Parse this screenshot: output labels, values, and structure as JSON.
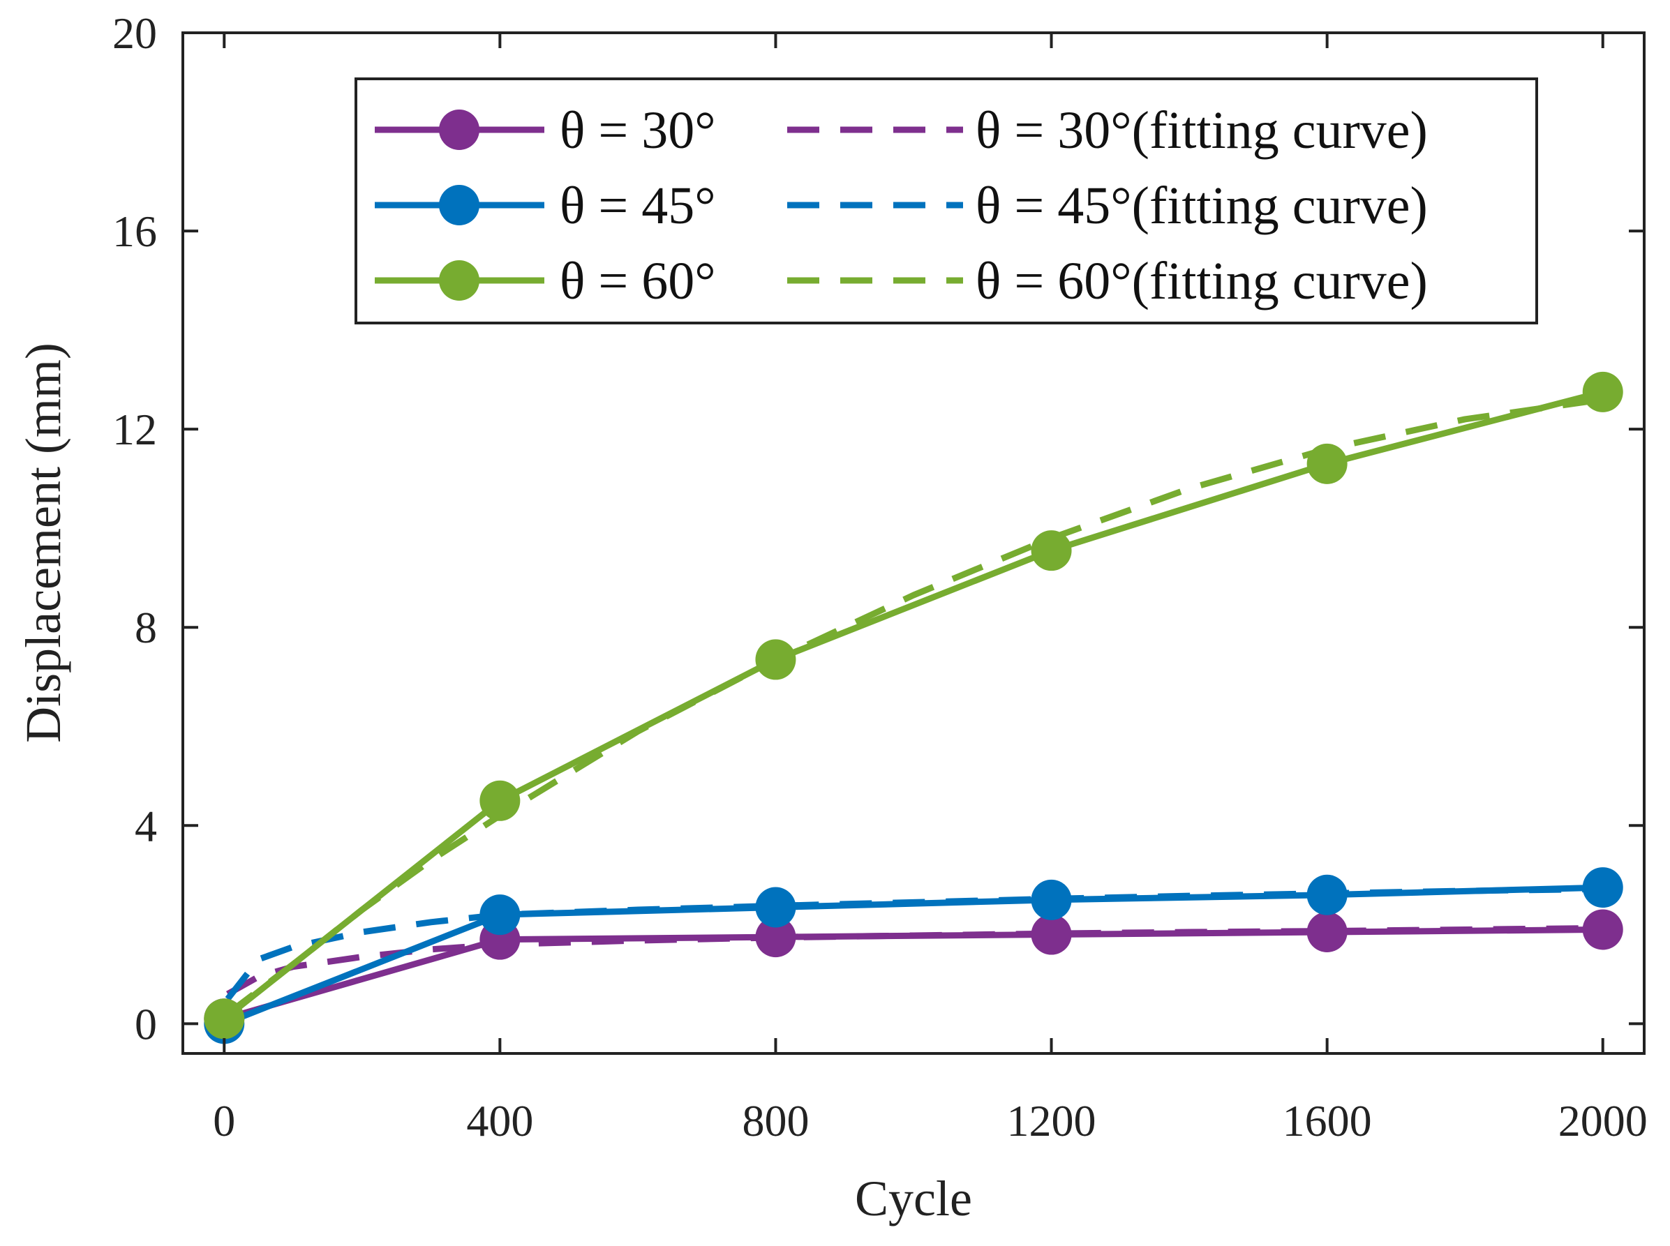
{
  "chart_data": {
    "type": "line",
    "title": "",
    "xlabel": "Cycle",
    "ylabel": "Displacement (mm)",
    "xlim": [
      -60,
      2060
    ],
    "ylim": [
      -0.6,
      20
    ],
    "xticks": [
      0,
      400,
      800,
      1200,
      1600,
      2000
    ],
    "yticks": [
      0,
      4,
      8,
      12,
      16,
      20
    ],
    "x": [
      0,
      400,
      800,
      1200,
      1600,
      2000
    ],
    "series": [
      {
        "name": "θ = 30°",
        "color": "#7E2F8E",
        "style": "solid-marker",
        "values": [
          0.1,
          1.7,
          1.75,
          1.8,
          1.85,
          1.9
        ]
      },
      {
        "name": "θ = 45°",
        "color": "#0072BD",
        "style": "solid-marker",
        "values": [
          0.0,
          2.2,
          2.35,
          2.5,
          2.6,
          2.75
        ]
      },
      {
        "name": "θ = 60°",
        "color": "#77AC30",
        "style": "solid-marker",
        "values": [
          0.1,
          4.5,
          7.35,
          9.55,
          11.3,
          12.75
        ]
      }
    ],
    "fit_series": [
      {
        "name": "θ = 30°(fitting curve)",
        "color": "#7E2F8E",
        "style": "dashed",
        "x": [
          5,
          50,
          100,
          200,
          300,
          400,
          600,
          800,
          1000,
          1200,
          1400,
          1600,
          1800,
          2000
        ],
        "values": [
          0.6,
          0.95,
          1.15,
          1.35,
          1.5,
          1.6,
          1.68,
          1.74,
          1.78,
          1.82,
          1.85,
          1.87,
          1.9,
          1.93
        ]
      },
      {
        "name": "θ = 45°(fitting curve)",
        "color": "#0072BD",
        "style": "dashed",
        "x": [
          5,
          50,
          100,
          200,
          300,
          400,
          600,
          800,
          1000,
          1200,
          1400,
          1600,
          1800,
          2000
        ],
        "values": [
          0.5,
          1.3,
          1.55,
          1.85,
          2.05,
          2.2,
          2.3,
          2.38,
          2.45,
          2.52,
          2.58,
          2.63,
          2.68,
          2.72
        ]
      },
      {
        "name": "θ = 60°(fitting curve)",
        "color": "#77AC30",
        "style": "dashed",
        "x": [
          5,
          100,
          200,
          300,
          400,
          600,
          800,
          1000,
          1200,
          1400,
          1600,
          1800,
          2000
        ],
        "values": [
          0.2,
          1.2,
          2.3,
          3.3,
          4.2,
          5.9,
          7.35,
          8.65,
          9.8,
          10.8,
          11.6,
          12.2,
          12.6
        ]
      }
    ],
    "legend": {
      "placement": "top-right",
      "entries": [
        "θ = 30°",
        "θ = 30°(fitting curve)",
        "θ = 45°",
        "θ = 45°(fitting curve)",
        "θ = 60°",
        "θ = 60°(fitting curve)"
      ]
    },
    "grid": false
  }
}
